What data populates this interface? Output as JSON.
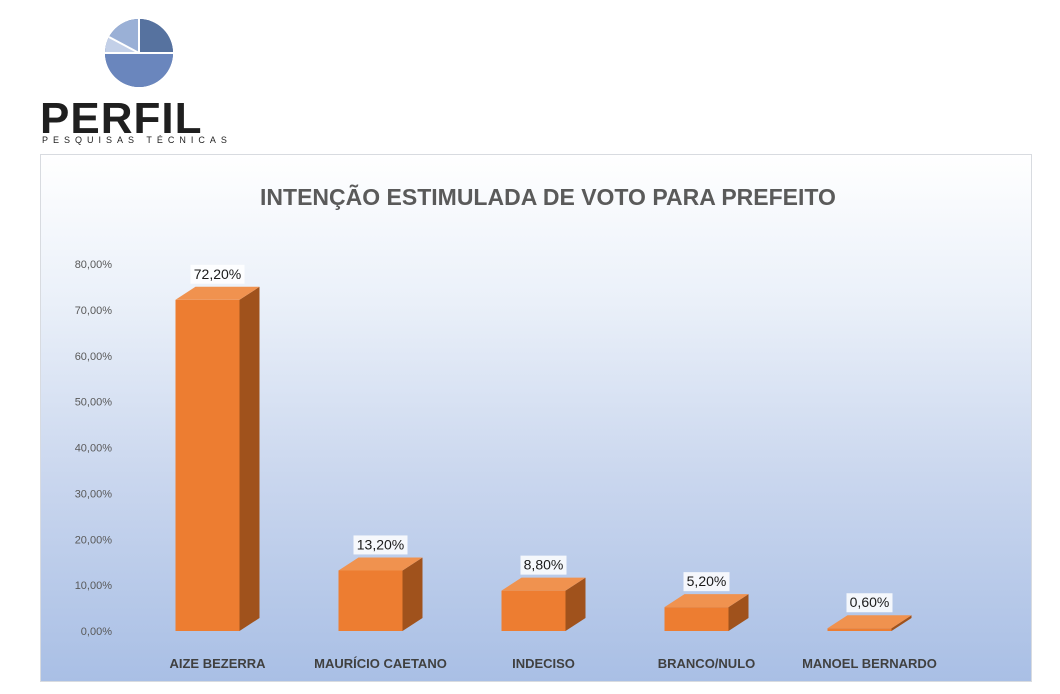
{
  "logo": {
    "name": "PERFIL",
    "tagline": "PESQUISAS TÉCNICAS",
    "colors": [
      "#3f5c96",
      "#6a86bd",
      "#9ab0d6",
      "#c3d0e8"
    ]
  },
  "colors": {
    "bar_front": "#ed7d31",
    "bar_top": "#f0924f",
    "bar_side": "#a0521c",
    "title": "#5a5a5a"
  },
  "chart_data": {
    "type": "bar",
    "title": "INTENÇÃO ESTIMULADA DE VOTO PARA PREFEITO",
    "xlabel": "",
    "ylabel": "",
    "categories": [
      "AIZE BEZERRA",
      "MAURÍCIO CAETANO",
      "INDECISO",
      "BRANCO/NULO",
      "MANOEL BERNARDO"
    ],
    "values": [
      72.2,
      13.2,
      8.8,
      5.2,
      0.6
    ],
    "data_labels": [
      "72,20%",
      "13,20%",
      "8,80%",
      "5,20%",
      "0,60%"
    ],
    "ylim": [
      0,
      80
    ],
    "y_ticks": [
      0,
      10,
      20,
      30,
      40,
      50,
      60,
      70,
      80
    ],
    "y_tick_labels": [
      "0,00%",
      "10,00%",
      "20,00%",
      "30,00%",
      "40,00%",
      "50,00%",
      "60,00%",
      "70,00%",
      "80,00%"
    ],
    "grid": false,
    "legend": "none",
    "style": "3d-column"
  }
}
